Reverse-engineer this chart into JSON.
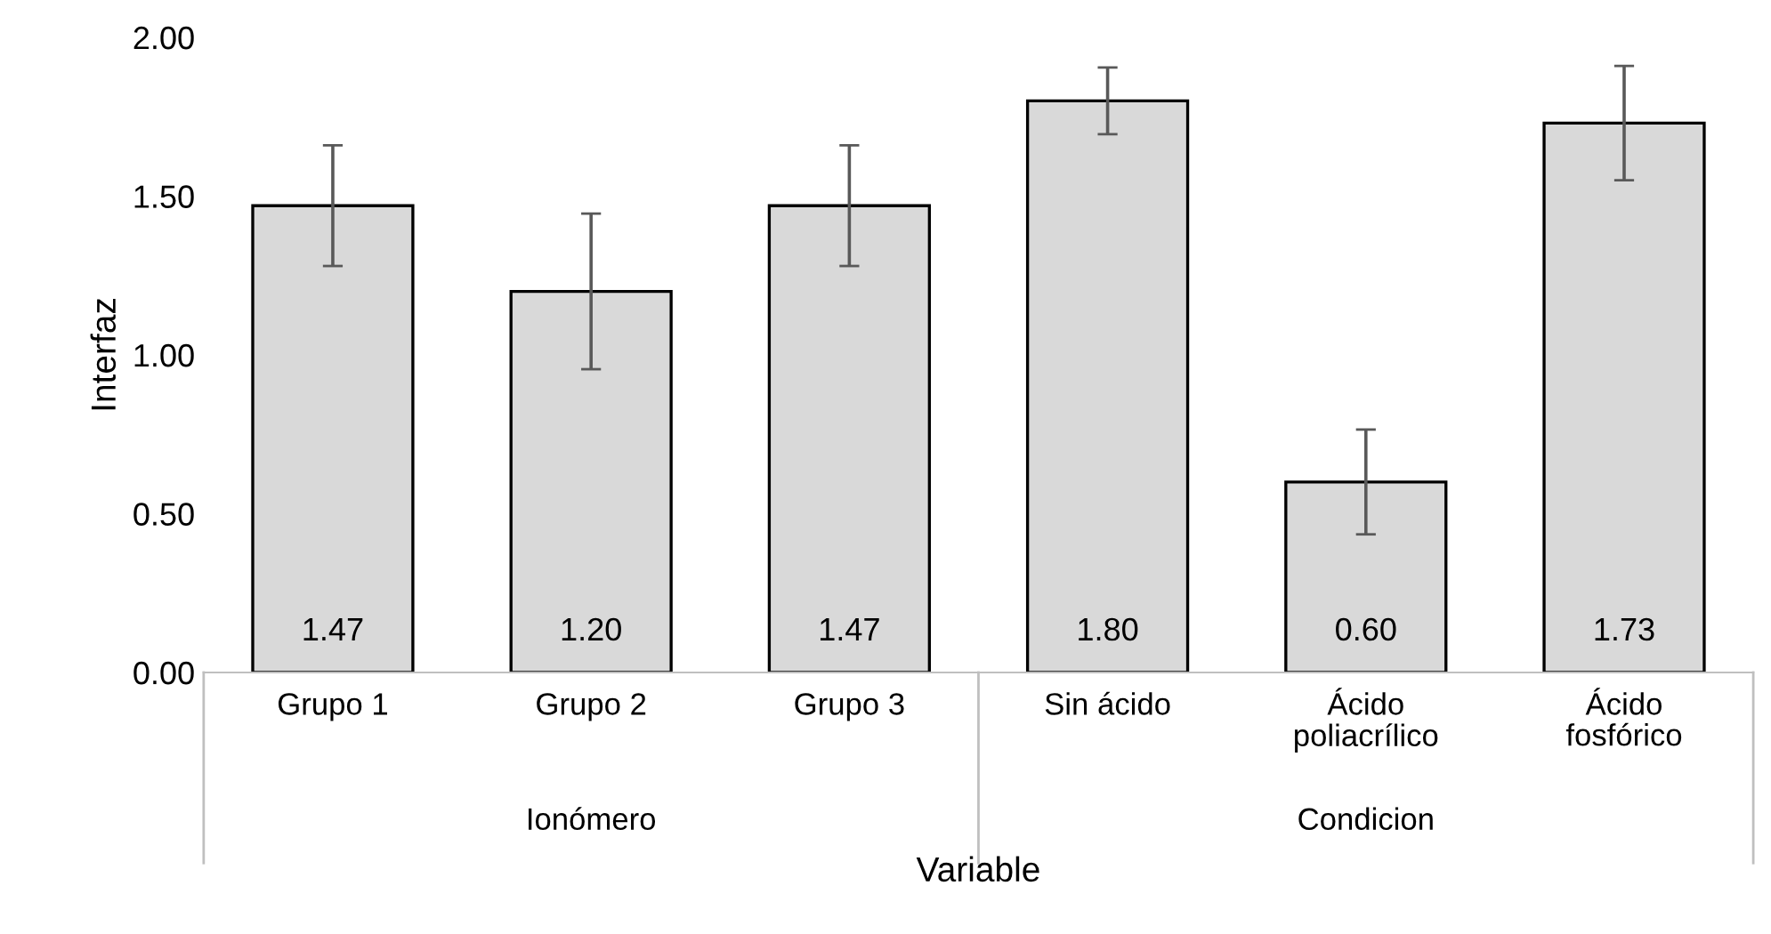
{
  "chart_data": {
    "type": "bar",
    "categories": [
      "Grupo 1",
      "Grupo 2",
      "Grupo 3",
      "Sin ácido",
      "Ácido\npoliacrílico",
      "Ácido\nfosfórico"
    ],
    "values": [
      1.47,
      1.2,
      1.47,
      1.8,
      0.6,
      1.73
    ],
    "errors": [
      0.19,
      0.245,
      0.19,
      0.105,
      0.165,
      0.18
    ],
    "color": "#d9d9d9",
    "value_labels": [
      "1.47",
      "1.20",
      "1.47",
      "1.80",
      "0.60",
      "1.73"
    ],
    "ylim": [
      0,
      2
    ],
    "yticks": [
      {
        "value": 0,
        "label": "0.00"
      },
      {
        "value": 0.5,
        "label": "0.50"
      },
      {
        "value": 1,
        "label": "1.00"
      },
      {
        "value": 1.5,
        "label": "1.50"
      },
      {
        "value": 2,
        "label": "2.00"
      }
    ],
    "ylabel": "Interfaz",
    "xlabel": "Variable",
    "annotations": [
      "Ionómero",
      "Condicion"
    ],
    "grid": false,
    "legend": false
  }
}
